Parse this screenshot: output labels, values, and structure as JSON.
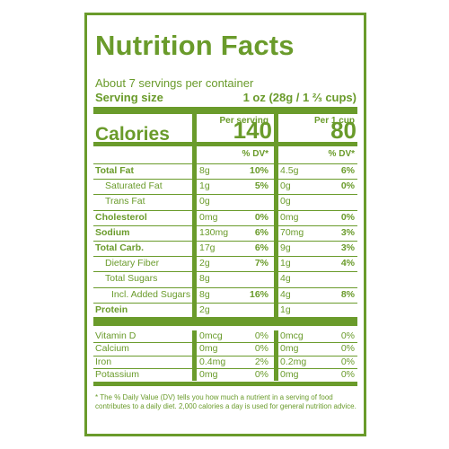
{
  "label": {
    "title": "Nutrition Facts",
    "servings_per_container": "About 7 servings per container",
    "serving_size_label": "Serving size",
    "serving_size_value": "1 oz (28g / 1 ⅔ cups)",
    "col1_header": "Per serving",
    "col2_header": "Per 1 cup",
    "calories_label": "Calories",
    "calories_col1": "140",
    "calories_col2": "80",
    "dv_header_col1": "% DV*",
    "dv_header_col2": "% DV*",
    "nutrients": [
      {
        "name": "Total Fat",
        "bold": true,
        "indent": 0,
        "amt1": "8g",
        "dv1": "10%",
        "amt2": "4.5g",
        "dv2": "6%",
        "dv_bold": true
      },
      {
        "name": "Saturated Fat",
        "bold": false,
        "indent": 1,
        "amt1": "1g",
        "dv1": "5%",
        "amt2": "0g",
        "dv2": "0%",
        "dv_bold": true
      },
      {
        "name": "Trans Fat",
        "bold": false,
        "indent": 1,
        "amt1": "0g",
        "dv1": "",
        "amt2": "0g",
        "dv2": "",
        "dv_bold": true
      },
      {
        "name": "Cholesterol",
        "bold": true,
        "indent": 0,
        "amt1": "0mg",
        "dv1": "0%",
        "amt2": "0mg",
        "dv2": "0%",
        "dv_bold": true
      },
      {
        "name": "Sodium",
        "bold": true,
        "indent": 0,
        "amt1": "130mg",
        "dv1": "6%",
        "amt2": "70mg",
        "dv2": "3%",
        "dv_bold": true
      },
      {
        "name": "Total Carb.",
        "bold": true,
        "indent": 0,
        "amt1": "17g",
        "dv1": "6%",
        "amt2": "9g",
        "dv2": "3%",
        "dv_bold": true
      },
      {
        "name": "Dietary Fiber",
        "bold": false,
        "indent": 1,
        "amt1": "2g",
        "dv1": "7%",
        "amt2": "1g",
        "dv2": "4%",
        "dv_bold": true
      },
      {
        "name": "Total Sugars",
        "bold": false,
        "indent": 1,
        "amt1": "8g",
        "dv1": "",
        "amt2": "4g",
        "dv2": "",
        "dv_bold": true
      },
      {
        "name": "Incl. Added Sugars",
        "bold": false,
        "indent": 2,
        "amt1": "8g",
        "dv1": "16%",
        "amt2": "4g",
        "dv2": "8%",
        "dv_bold": true
      },
      {
        "name": "Protein",
        "bold": true,
        "indent": 0,
        "amt1": "2g",
        "dv1": "",
        "amt2": "1g",
        "dv2": "",
        "dv_bold": true
      }
    ],
    "micronutrients": [
      {
        "name": "Vitamin D",
        "amt1": "0mcg",
        "dv1": "0%",
        "amt2": "0mcg",
        "dv2": "0%"
      },
      {
        "name": "Calcium",
        "amt1": "0mg",
        "dv1": "0%",
        "amt2": "0mg",
        "dv2": "0%"
      },
      {
        "name": "Iron",
        "amt1": "0.4mg",
        "dv1": "2%",
        "amt2": "0.2mg",
        "dv2": "0%"
      },
      {
        "name": "Potassium",
        "amt1": "0mg",
        "dv1": "0%",
        "amt2": "0mg",
        "dv2": "0%"
      }
    ],
    "footnote": "* The % Daily Value (DV) tells you how much a nutrient in a serving of food contributes to a daily diet. 2,000 calories a day is used for general nutrition advice."
  },
  "colors": {
    "label_green": "#6a9b2b",
    "background": "#ffffff"
  }
}
